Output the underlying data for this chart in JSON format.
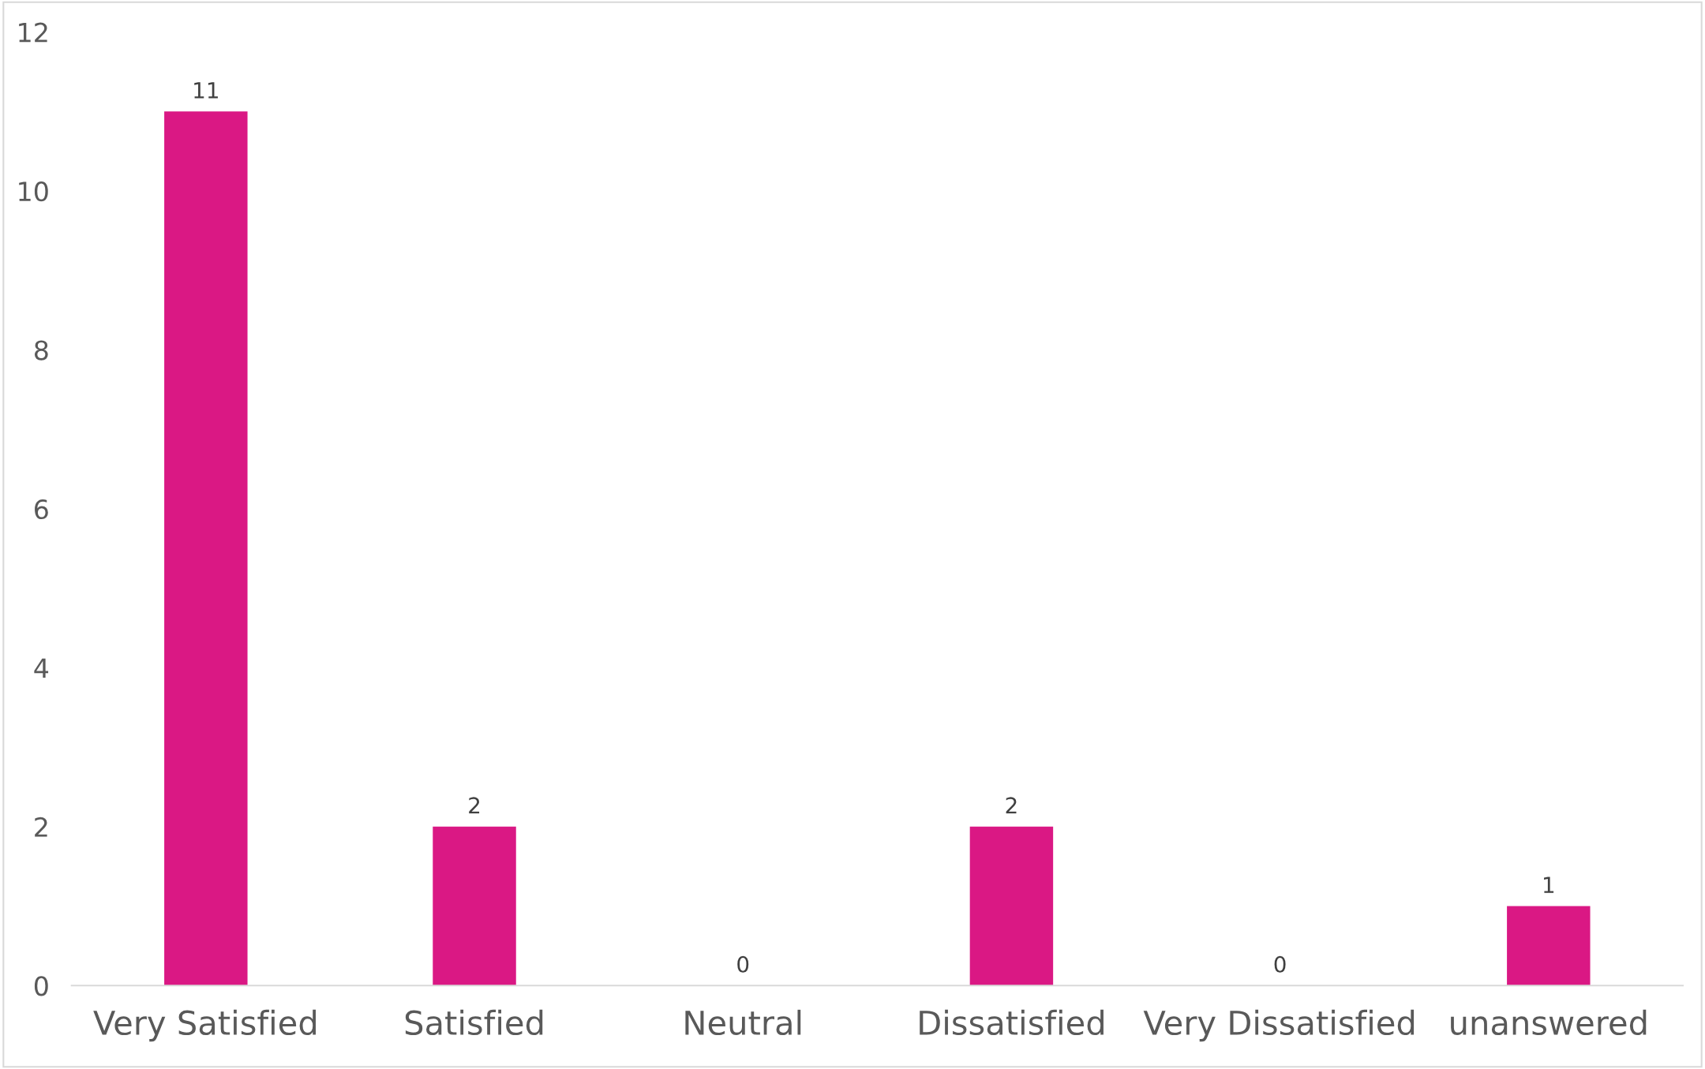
{
  "chart_data": {
    "type": "bar",
    "categories": [
      "Very Satisfied",
      "Satisfied",
      "Neutral",
      "Dissatisfied",
      "Very Dissatisfied",
      "unanswered"
    ],
    "values": [
      11,
      2,
      0,
      2,
      0,
      1
    ],
    "color": "#da1884",
    "ylim": [
      0,
      12
    ],
    "yticks": [
      0,
      2,
      4,
      6,
      8,
      10,
      12
    ],
    "grid": false,
    "legend": false,
    "data_labels": true
  }
}
